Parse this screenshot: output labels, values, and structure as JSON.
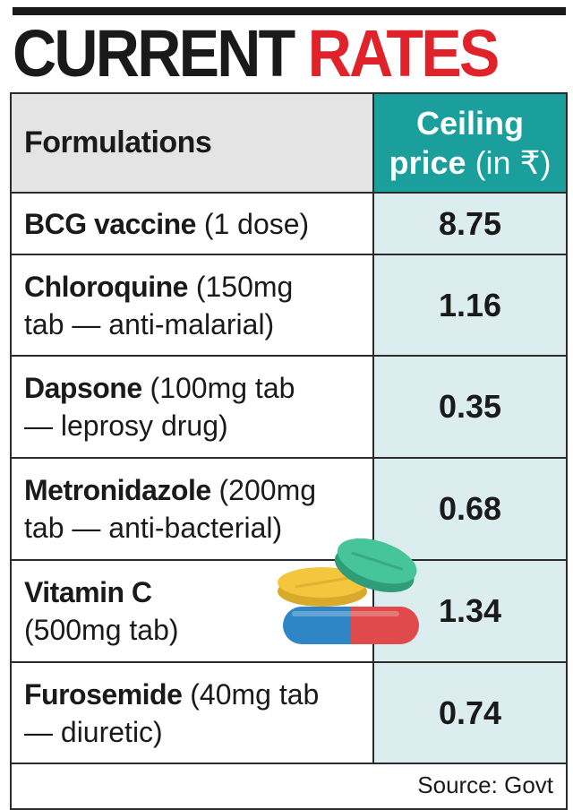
{
  "title": {
    "word1": "CURRENT",
    "word2": "RATES"
  },
  "header": {
    "formulations": "Formulations",
    "price_line1": "Ceiling",
    "price_line2a": "price",
    "price_line2b": " (in ₹)"
  },
  "rows": [
    {
      "name": "BCG vaccine",
      "detail": " (1 dose)",
      "price": "8.75"
    },
    {
      "name": "Chloroquine",
      "detail": " (150mg",
      "detail2": "tab — anti-malarial)",
      "price": "1.16"
    },
    {
      "name": "Dapsone",
      "detail": " (100mg tab",
      "detail2": "— leprosy drug)",
      "price": "0.35"
    },
    {
      "name": "Metronidazole",
      "detail": " (200mg",
      "detail2": "tab — anti-bacterial)",
      "price": "0.68"
    },
    {
      "name": "Vitamin C",
      "detail": "",
      "detail2": "(500mg tab)",
      "price": "1.34"
    },
    {
      "name": "Furosemide",
      "detail": " (40mg tab",
      "detail2": "— diuretic)",
      "price": "0.74"
    }
  ],
  "source": "Source: Govt",
  "colors": {
    "accent_red": "#e0232a",
    "header_teal": "#1a9f9c",
    "price_bg": "#dcedf0",
    "header_gray": "#e4e4e4"
  },
  "icons": [
    "pills-icon"
  ]
}
